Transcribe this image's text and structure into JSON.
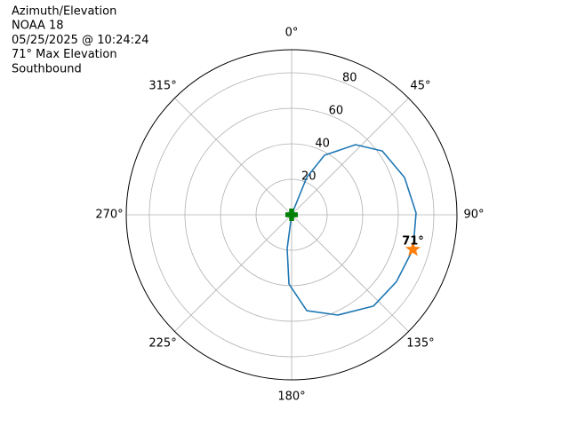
{
  "chart_data": {
    "type": "polar",
    "info": [
      "Azimuth/Elevation",
      "NOAA 18",
      "05/25/2025 @ 10:24:24",
      "71° Max Elevation",
      "Southbound"
    ],
    "theta_zero": "N",
    "theta_direction": "clockwise",
    "rlim": [
      0,
      93
    ],
    "rticks": [
      20,
      40,
      60,
      80
    ],
    "thetaticks": [
      {
        "value": 0,
        "label": "0°"
      },
      {
        "value": 45,
        "label": "45°"
      },
      {
        "value": 90,
        "label": "90°"
      },
      {
        "value": 135,
        "label": "135°"
      },
      {
        "value": 180,
        "label": "180°"
      },
      {
        "value": 225,
        "label": "225°"
      },
      {
        "value": 270,
        "label": "270°"
      },
      {
        "value": 315,
        "label": "315°"
      }
    ],
    "grid": true,
    "track": {
      "color": "#1f77b4",
      "theta": [
        0,
        22,
        28.9,
        42.3,
        54.8,
        71.7,
        89.2,
        105.8,
        122.6,
        138.2,
        155.3,
        171,
        182.2,
        187.5,
        190
      ],
      "r": [
        0,
        22.7,
        38.3,
        53.4,
        62.4,
        66.9,
        70,
        71,
        70,
        69,
        62.2,
        54.7,
        39,
        19.2,
        0
      ]
    },
    "max_point": {
      "theta": 106,
      "r": 71,
      "label": "71°",
      "color": "#ff7f0e",
      "marker": "star"
    },
    "start_point": {
      "theta": 0,
      "r": 0,
      "color": "#008000",
      "marker": "plus"
    }
  }
}
